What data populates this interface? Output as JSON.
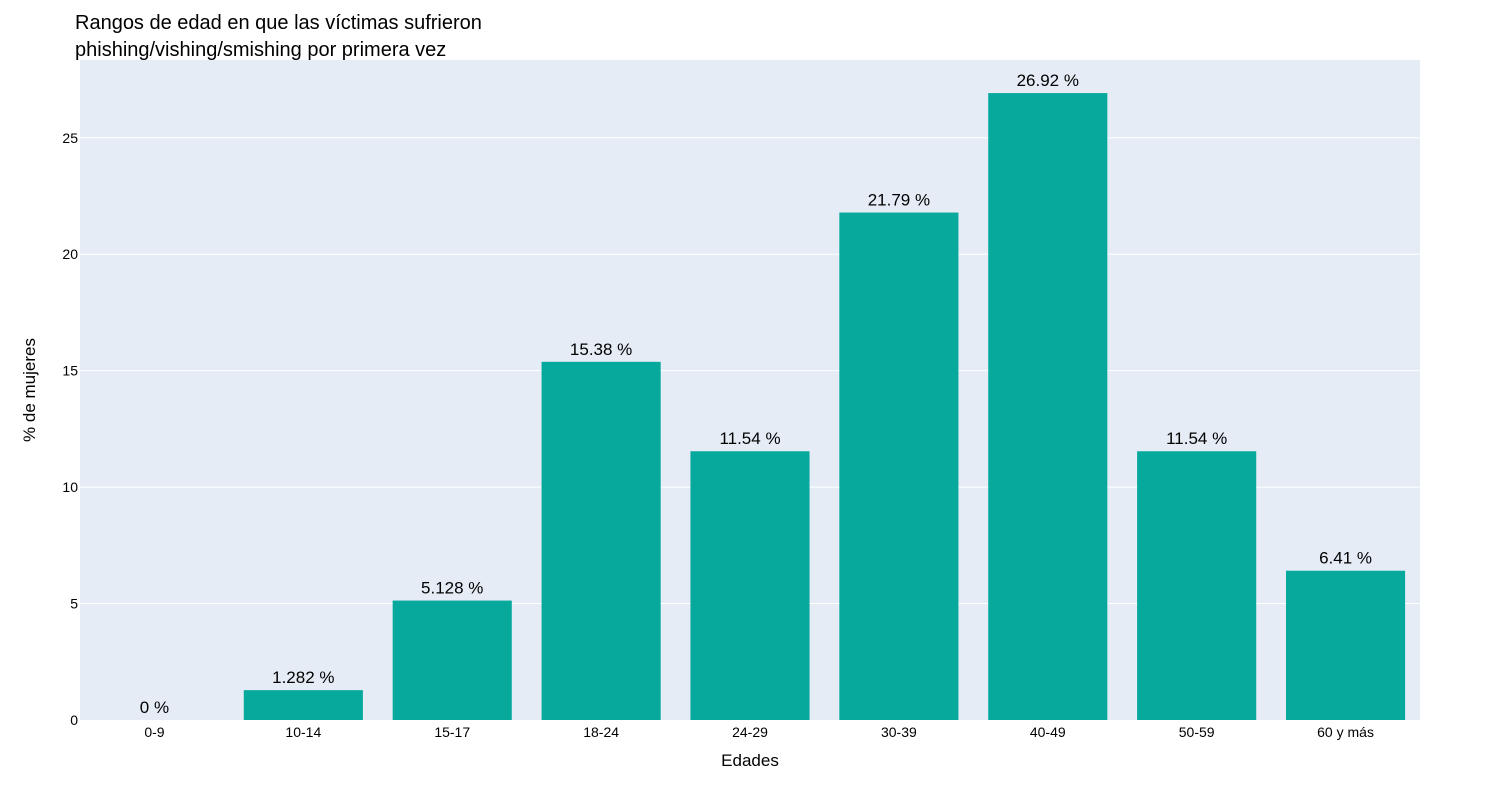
{
  "chart_data": {
    "type": "bar",
    "title_line1": "Rangos de edad en que las víctimas sufrieron",
    "title_line2": "phishing/vishing/smishing por primera vez",
    "xlabel": "Edades",
    "ylabel": "% de mujeres",
    "categories": [
      "0-9",
      "10-14",
      "15-17",
      "18-24",
      "24-29",
      "30-39",
      "40-49",
      "50-59",
      "60 y más"
    ],
    "values": [
      0,
      1.282,
      5.128,
      15.38,
      11.54,
      21.79,
      26.92,
      11.54,
      6.41
    ],
    "bar_labels": [
      "0 %",
      "1.282 %",
      "5.128 %",
      "15.38 %",
      "11.54 %",
      "21.79 %",
      "26.92 %",
      "11.54 %",
      "6.41 %"
    ],
    "y_ticks": [
      0,
      5,
      10,
      15,
      20,
      25
    ],
    "ylim": [
      0,
      28.34
    ],
    "grid": true,
    "legend": "none",
    "colors": {
      "bar": "#06a99c",
      "plot_background": "#e5ecf6",
      "grid": "#ffffff"
    }
  }
}
